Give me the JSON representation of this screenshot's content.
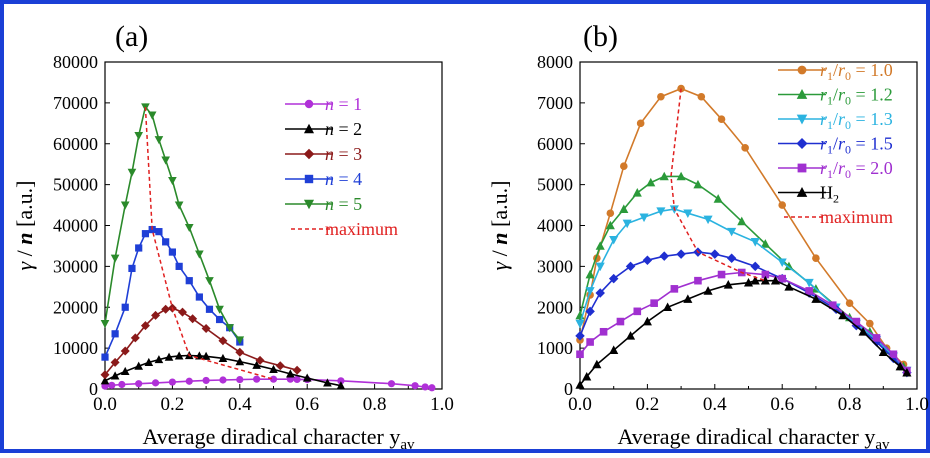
{
  "border_color": "#1a3fd6",
  "panels": [
    {
      "label": "(a)",
      "xlabel": "Average diradical character y",
      "xlabel_sub": "av",
      "ylabel_gamma": "γ",
      "ylabel_mid": " / ",
      "ylabel_n": "n",
      "ylabel_unit": " [a.u.]",
      "xticks": [
        "0.0",
        "0.2",
        "0.4",
        "0.6",
        "0.8",
        "1.0"
      ],
      "yticks": [
        "0",
        "10000",
        "20000",
        "30000",
        "40000",
        "50000",
        "60000",
        "70000",
        "80000"
      ],
      "legend": [
        {
          "italic": "n",
          "text": " = 1"
        },
        {
          "italic": "n",
          "text": " = 2"
        },
        {
          "italic": "n",
          "text": " = 3"
        },
        {
          "italic": "n",
          "text": " = 4"
        },
        {
          "italic": "n",
          "text": " = 5"
        },
        {
          "italic": "",
          "text": "maximum"
        }
      ]
    },
    {
      "label": "(b)",
      "xlabel": "Average diradical character y",
      "xlabel_sub": "av",
      "ylabel_gamma": "γ",
      "ylabel_mid": " / ",
      "ylabel_n": "n",
      "ylabel_unit": " [a.u.]",
      "xticks": [
        "0.0",
        "0.2",
        "0.4",
        "0.6",
        "0.8",
        "1.0"
      ],
      "yticks": [
        "0",
        "1000",
        "2000",
        "3000",
        "4000",
        "5000",
        "6000",
        "7000",
        "8000"
      ],
      "legend": [
        {
          "r1": "r",
          "s1": "1",
          "slash": "/",
          "r0": "r",
          "s0": "0",
          "val": " = 1.0"
        },
        {
          "r1": "r",
          "s1": "1",
          "slash": "/",
          "r0": "r",
          "s0": "0",
          "val": " = 1.2"
        },
        {
          "r1": "r",
          "s1": "1",
          "slash": "/",
          "r0": "r",
          "s0": "0",
          "val": " = 1.3"
        },
        {
          "r1": "r",
          "s1": "1",
          "slash": "/",
          "r0": "r",
          "s0": "0",
          "val": " = 1.5"
        },
        {
          "r1": "r",
          "s1": "1",
          "slash": "/",
          "r0": "r",
          "s0": "0",
          "val": " = 2.0"
        },
        {
          "h": "H",
          "hs": "2"
        },
        {
          "text": "maximum"
        }
      ]
    }
  ],
  "chart_data": [
    {
      "type": "line",
      "title": "(a)",
      "xlabel": "Average diradical character yav",
      "ylabel": "γ / n [a.u.]",
      "xlim": [
        0,
        1.0
      ],
      "ylim": [
        0,
        80000
      ],
      "grid": false,
      "legend_position": "top-right",
      "series": [
        {
          "name": "n = 1",
          "color": "#b030d8",
          "marker": "circle",
          "points": [
            [
              0.0,
              700
            ],
            [
              0.02,
              900
            ],
            [
              0.05,
              1100
            ],
            [
              0.1,
              1300
            ],
            [
              0.15,
              1500
            ],
            [
              0.2,
              1700
            ],
            [
              0.25,
              1900
            ],
            [
              0.3,
              2100
            ],
            [
              0.35,
              2200
            ],
            [
              0.4,
              2300
            ],
            [
              0.45,
              2400
            ],
            [
              0.5,
              2400
            ],
            [
              0.55,
              2400
            ],
            [
              0.57,
              2350
            ],
            [
              0.6,
              2300
            ],
            [
              0.7,
              2000
            ],
            [
              0.85,
              1300
            ],
            [
              0.92,
              800
            ],
            [
              0.95,
              500
            ],
            [
              0.97,
              300
            ]
          ]
        },
        {
          "name": "n = 2",
          "color": "#000000",
          "marker": "triangle-up",
          "points": [
            [
              0.0,
              2000
            ],
            [
              0.03,
              3200
            ],
            [
              0.06,
              4300
            ],
            [
              0.1,
              5600
            ],
            [
              0.13,
              6500
            ],
            [
              0.16,
              7200
            ],
            [
              0.19,
              7800
            ],
            [
              0.22,
              8100
            ],
            [
              0.25,
              8200
            ],
            [
              0.28,
              8100
            ],
            [
              0.3,
              8000
            ],
            [
              0.35,
              7500
            ],
            [
              0.4,
              6700
            ],
            [
              0.45,
              5800
            ],
            [
              0.5,
              4800
            ],
            [
              0.55,
              3700
            ],
            [
              0.6,
              2700
            ],
            [
              0.66,
              1500
            ],
            [
              0.7,
              800
            ]
          ]
        },
        {
          "name": "n = 3",
          "color": "#8b1a1a",
          "marker": "diamond",
          "points": [
            [
              0.0,
              3500
            ],
            [
              0.03,
              6500
            ],
            [
              0.06,
              9300
            ],
            [
              0.09,
              12500
            ],
            [
              0.12,
              15500
            ],
            [
              0.15,
              18000
            ],
            [
              0.18,
              19500
            ],
            [
              0.2,
              19800
            ],
            [
              0.23,
              18800
            ],
            [
              0.26,
              17200
            ],
            [
              0.3,
              14800
            ],
            [
              0.35,
              11800
            ],
            [
              0.4,
              9000
            ],
            [
              0.46,
              7000
            ],
            [
              0.52,
              5700
            ],
            [
              0.57,
              4600
            ]
          ]
        },
        {
          "name": "n = 4",
          "color": "#1f3fd6",
          "marker": "square",
          "points": [
            [
              0.0,
              7800
            ],
            [
              0.03,
              13500
            ],
            [
              0.06,
              20000
            ],
            [
              0.08,
              29500
            ],
            [
              0.1,
              34500
            ],
            [
              0.12,
              38000
            ],
            [
              0.14,
              39000
            ],
            [
              0.16,
              38500
            ],
            [
              0.18,
              36000
            ],
            [
              0.2,
              33500
            ],
            [
              0.22,
              30000
            ],
            [
              0.25,
              26500
            ],
            [
              0.28,
              22500
            ],
            [
              0.31,
              19500
            ],
            [
              0.34,
              17000
            ],
            [
              0.37,
              15000
            ],
            [
              0.4,
              11500
            ]
          ]
        },
        {
          "name": "n = 5",
          "color": "#2b8a2b",
          "marker": "triangle-down",
          "points": [
            [
              0.0,
              16000
            ],
            [
              0.03,
              32000
            ],
            [
              0.06,
              45000
            ],
            [
              0.08,
              53000
            ],
            [
              0.1,
              62000
            ],
            [
              0.12,
              69000
            ],
            [
              0.14,
              67000
            ],
            [
              0.16,
              61000
            ],
            [
              0.18,
              56000
            ],
            [
              0.2,
              51000
            ],
            [
              0.22,
              45000
            ],
            [
              0.25,
              39500
            ],
            [
              0.28,
              33000
            ],
            [
              0.31,
              26500
            ],
            [
              0.34,
              19500
            ],
            [
              0.37,
              15000
            ],
            [
              0.4,
              12000
            ]
          ]
        },
        {
          "name": "maximum",
          "color": "#e02020",
          "style": "dashed",
          "points": [
            [
              0.12,
              69000
            ],
            [
              0.14,
              39000
            ],
            [
              0.2,
              19800
            ],
            [
              0.25,
              8200
            ],
            [
              0.5,
              2400
            ]
          ]
        }
      ]
    },
    {
      "type": "line",
      "title": "(b)",
      "xlabel": "Average diradical character yav",
      "ylabel": "γ / n [a.u.]",
      "xlim": [
        0,
        1.0
      ],
      "ylim": [
        0,
        8000
      ],
      "grid": false,
      "legend_position": "top-right",
      "series": [
        {
          "name": "r1/r0 = 1.0",
          "color": "#d27a2a",
          "marker": "circle",
          "points": [
            [
              0.0,
              1200
            ],
            [
              0.03,
              2300
            ],
            [
              0.05,
              3200
            ],
            [
              0.09,
              4300
            ],
            [
              0.13,
              5450
            ],
            [
              0.18,
              6500
            ],
            [
              0.24,
              7150
            ],
            [
              0.3,
              7350
            ],
            [
              0.36,
              7150
            ],
            [
              0.42,
              6600
            ],
            [
              0.49,
              5900
            ],
            [
              0.6,
              4500
            ],
            [
              0.7,
              3200
            ],
            [
              0.8,
              2100
            ],
            [
              0.86,
              1600
            ],
            [
              0.91,
              1000
            ],
            [
              0.96,
              600
            ]
          ]
        },
        {
          "name": "r1/r0 = 1.2",
          "color": "#2b9a3a",
          "marker": "triangle-up",
          "points": [
            [
              0.0,
              1800
            ],
            [
              0.03,
              2800
            ],
            [
              0.06,
              3500
            ],
            [
              0.09,
              4000
            ],
            [
              0.13,
              4400
            ],
            [
              0.17,
              4800
            ],
            [
              0.21,
              5050
            ],
            [
              0.25,
              5200
            ],
            [
              0.3,
              5200
            ],
            [
              0.35,
              5000
            ],
            [
              0.41,
              4650
            ],
            [
              0.48,
              4100
            ],
            [
              0.55,
              3550
            ],
            [
              0.62,
              3000
            ],
            [
              0.7,
              2450
            ],
            [
              0.8,
              1750
            ],
            [
              0.86,
              1400
            ],
            [
              0.91,
              950
            ],
            [
              0.96,
              550
            ]
          ]
        },
        {
          "name": "r1/r0 = 1.3",
          "color": "#2bb3e0",
          "marker": "triangle-down",
          "points": [
            [
              0.0,
              1600
            ],
            [
              0.03,
              2400
            ],
            [
              0.06,
              3000
            ],
            [
              0.1,
              3650
            ],
            [
              0.14,
              4050
            ],
            [
              0.19,
              4200
            ],
            [
              0.24,
              4350
            ],
            [
              0.28,
              4400
            ],
            [
              0.32,
              4300
            ],
            [
              0.38,
              4150
            ],
            [
              0.45,
              3850
            ],
            [
              0.52,
              3600
            ],
            [
              0.6,
              3100
            ],
            [
              0.68,
              2600
            ],
            [
              0.76,
              2000
            ],
            [
              0.82,
              1600
            ],
            [
              0.88,
              1200
            ],
            [
              0.93,
              800
            ],
            [
              0.97,
              450
            ]
          ]
        },
        {
          "name": "r1/r0 = 1.5",
          "color": "#1f2fd0",
          "marker": "diamond",
          "points": [
            [
              0.0,
              1300
            ],
            [
              0.03,
              1900
            ],
            [
              0.06,
              2350
            ],
            [
              0.1,
              2700
            ],
            [
              0.15,
              3000
            ],
            [
              0.2,
              3150
            ],
            [
              0.25,
              3250
            ],
            [
              0.3,
              3300
            ],
            [
              0.35,
              3350
            ],
            [
              0.4,
              3300
            ],
            [
              0.45,
              3200
            ],
            [
              0.52,
              3000
            ],
            [
              0.6,
              2700
            ],
            [
              0.68,
              2350
            ],
            [
              0.76,
              1950
            ],
            [
              0.82,
              1550
            ],
            [
              0.88,
              1150
            ],
            [
              0.93,
              750
            ],
            [
              0.97,
              400
            ]
          ]
        },
        {
          "name": "r1/r0 = 2.0",
          "color": "#a030d0",
          "marker": "square",
          "points": [
            [
              0.0,
              850
            ],
            [
              0.03,
              1150
            ],
            [
              0.07,
              1400
            ],
            [
              0.12,
              1650
            ],
            [
              0.17,
              1900
            ],
            [
              0.22,
              2100
            ],
            [
              0.28,
              2450
            ],
            [
              0.35,
              2650
            ],
            [
              0.42,
              2800
            ],
            [
              0.48,
              2850
            ],
            [
              0.55,
              2800
            ],
            [
              0.6,
              2700
            ],
            [
              0.68,
              2400
            ],
            [
              0.75,
              2050
            ],
            [
              0.82,
              1650
            ],
            [
              0.88,
              1250
            ],
            [
              0.93,
              850
            ],
            [
              0.97,
              450
            ]
          ]
        },
        {
          "name": "H2",
          "color": "#000000",
          "marker": "triangle-up",
          "points": [
            [
              0.0,
              100
            ],
            [
              0.02,
              300
            ],
            [
              0.05,
              600
            ],
            [
              0.1,
              950
            ],
            [
              0.15,
              1300
            ],
            [
              0.2,
              1650
            ],
            [
              0.26,
              2000
            ],
            [
              0.32,
              2200
            ],
            [
              0.38,
              2400
            ],
            [
              0.44,
              2550
            ],
            [
              0.5,
              2600
            ],
            [
              0.52,
              2650
            ],
            [
              0.55,
              2650
            ],
            [
              0.58,
              2650
            ],
            [
              0.62,
              2500
            ],
            [
              0.7,
              2200
            ],
            [
              0.78,
              1800
            ],
            [
              0.84,
              1400
            ],
            [
              0.9,
              900
            ],
            [
              0.95,
              550
            ],
            [
              0.97,
              400
            ]
          ]
        },
        {
          "name": "maximum",
          "color": "#e02020",
          "style": "dashed",
          "points": [
            [
              0.3,
              7350
            ],
            [
              0.27,
              5200
            ],
            [
              0.28,
              4400
            ],
            [
              0.35,
              3350
            ],
            [
              0.48,
              2850
            ],
            [
              0.55,
              2650
            ]
          ]
        }
      ]
    }
  ]
}
